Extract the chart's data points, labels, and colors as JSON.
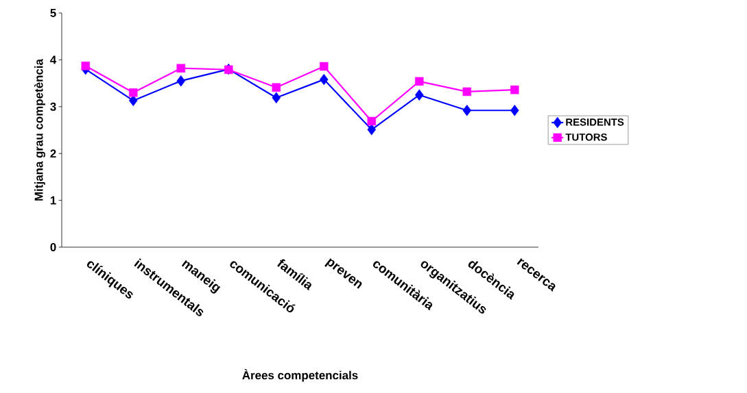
{
  "chart_data": {
    "type": "line",
    "xlabel": "Àrees competencials",
    "ylabel": "Mitjana grau competència",
    "categories": [
      "clíniques",
      "instrumentals",
      "maneig",
      "comunicació",
      "família",
      "preven",
      "comunitària",
      "organitzatius",
      "docència",
      "recerca"
    ],
    "series": [
      {
        "name": "RESIDENTS",
        "color": "#0000ff",
        "marker": "diamond",
        "values": [
          3.8,
          3.13,
          3.55,
          3.8,
          3.19,
          3.58,
          2.51,
          3.25,
          2.92,
          2.92
        ]
      },
      {
        "name": "TUTORS",
        "color": "#ff00ff",
        "marker": "square",
        "values": [
          3.87,
          3.3,
          3.82,
          3.79,
          3.41,
          3.86,
          2.69,
          3.54,
          3.32,
          3.36
        ]
      }
    ],
    "ylim": [
      0,
      5
    ],
    "yticks": [
      0,
      1,
      2,
      3,
      4,
      5
    ],
    "legend": "right",
    "grid": false
  }
}
